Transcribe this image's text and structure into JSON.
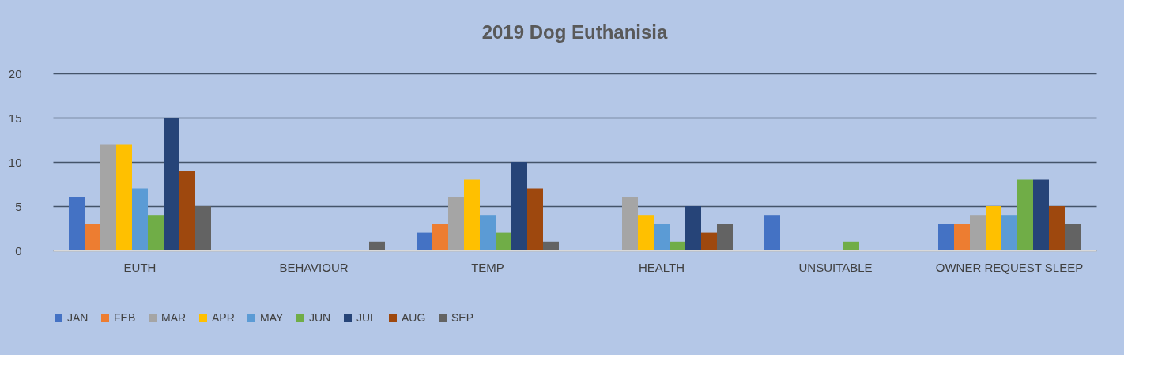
{
  "chart_data": {
    "type": "bar",
    "title": "2019 Dog Euthanisia",
    "categories": [
      "EUTH",
      "BEHAVIOUR",
      "TEMP",
      "HEALTH",
      "UNSUITABLE",
      "OWNER REQUEST SLEEP"
    ],
    "series": [
      {
        "name": "JAN",
        "color": "#4472c4",
        "values": [
          6,
          null,
          2,
          null,
          4,
          3
        ]
      },
      {
        "name": "FEB",
        "color": "#ed7d31",
        "values": [
          3,
          null,
          3,
          null,
          null,
          3
        ]
      },
      {
        "name": "MAR",
        "color": "#a5a5a5",
        "values": [
          12,
          null,
          6,
          6,
          null,
          4
        ]
      },
      {
        "name": "APR",
        "color": "#ffc000",
        "values": [
          12,
          null,
          8,
          4,
          null,
          5
        ]
      },
      {
        "name": "MAY",
        "color": "#5b9bd5",
        "values": [
          7,
          null,
          4,
          3,
          null,
          4
        ]
      },
      {
        "name": "JUN",
        "color": "#70ad47",
        "values": [
          4,
          null,
          2,
          1,
          1,
          8
        ]
      },
      {
        "name": "JUL",
        "color": "#264478",
        "values": [
          15,
          null,
          10,
          5,
          null,
          8
        ]
      },
      {
        "name": "AUG",
        "color": "#9e480e",
        "values": [
          9,
          null,
          7,
          2,
          null,
          5
        ]
      },
      {
        "name": "SEP",
        "color": "#636363",
        "values": [
          5,
          1,
          1,
          3,
          null,
          3
        ]
      }
    ],
    "ylim": [
      0,
      20
    ],
    "yticks": [
      0,
      5,
      10,
      15,
      20
    ],
    "grid": "y",
    "legend": "bottom"
  }
}
